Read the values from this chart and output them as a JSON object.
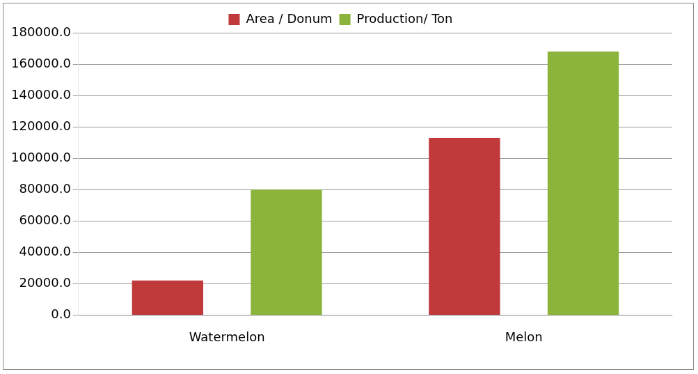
{
  "chart_data": {
    "type": "bar",
    "categories": [
      "Watermelon",
      "Melon"
    ],
    "series": [
      {
        "name": "Area / Donum",
        "color": "#c0393b",
        "values": [
          22000,
          113000
        ]
      },
      {
        "name": "Production/ Ton",
        "color": "#8cb43c",
        "values": [
          80000,
          168000
        ]
      }
    ],
    "ylim": [
      0,
      180000
    ],
    "yticks": [
      {
        "value": 0,
        "label": "0.0"
      },
      {
        "value": 20000,
        "label": "20000.0"
      },
      {
        "value": 40000,
        "label": "40000.0"
      },
      {
        "value": 60000,
        "label": "60000.0"
      },
      {
        "value": 80000,
        "label": "80000.0"
      },
      {
        "value": 100000,
        "label": "100000.0"
      },
      {
        "value": 120000,
        "label": "120000.0"
      },
      {
        "value": 140000,
        "label": "140000.0"
      },
      {
        "value": 160000,
        "label": "160000.0"
      },
      {
        "value": 180000,
        "label": "180000.0"
      }
    ],
    "grid": "y",
    "legend": "top"
  }
}
